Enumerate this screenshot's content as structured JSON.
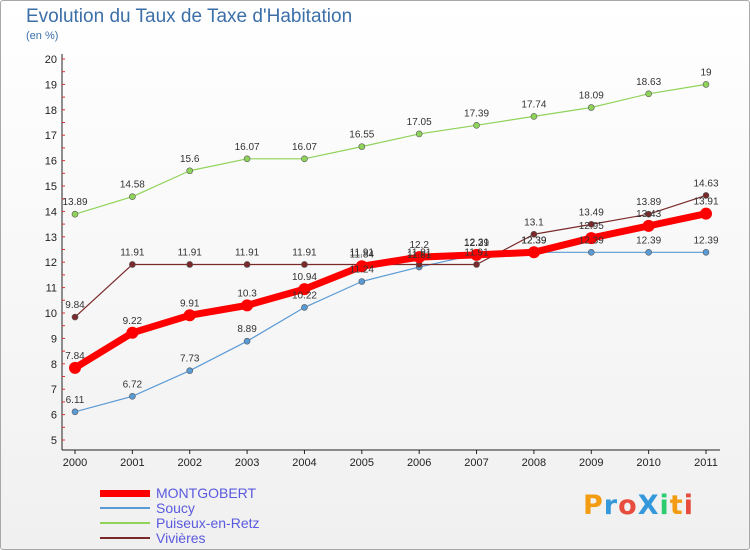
{
  "title": "Evolution du Taux de Taxe d'Habitation",
  "unit": "(en %)",
  "brand": {
    "text": "ProXiti",
    "letters": [
      "P",
      "r",
      "o",
      "X",
      "i",
      "t",
      "i"
    ],
    "colors": [
      "#f39c12",
      "#3498db",
      "#e74c3c",
      "#3498db",
      "#2ecc71",
      "#f39c12",
      "#e74c3c"
    ]
  },
  "chart_data": {
    "type": "line",
    "title": "Evolution du Taux de Taxe d'Habitation",
    "ylabel": "(en %)",
    "xlabel": "",
    "ylim": [
      5,
      20
    ],
    "yticks": [
      5,
      6,
      7,
      8,
      9,
      10,
      11,
      12,
      13,
      14,
      15,
      16,
      17,
      18,
      19,
      20
    ],
    "categories": [
      "2000",
      "2001",
      "2002",
      "2003",
      "2004",
      "2005",
      "2006",
      "2007",
      "2008",
      "2009",
      "2010",
      "2011"
    ],
    "grid": false,
    "legend": "bottom-left",
    "series": [
      {
        "name": "MONTGOBERT",
        "color": "#ff0000",
        "values": [
          7.84,
          9.22,
          9.91,
          10.3,
          10.94,
          11.84,
          12.2,
          12.29,
          12.39,
          12.95,
          13.43,
          13.91
        ],
        "labels": [
          "7.84",
          "9.22",
          "9.91",
          "10.3",
          "10.94",
          "11.84",
          "12.2",
          "12.29",
          "12.39",
          "12.95",
          "13.43",
          "13.91"
        ]
      },
      {
        "name": "Soucy",
        "color": "#5b9bd5",
        "values": [
          6.11,
          6.72,
          7.73,
          8.89,
          10.22,
          11.24,
          11.81,
          12.31,
          12.39,
          12.39,
          12.39,
          12.39
        ],
        "labels": [
          "6.11",
          "6.72",
          "7.73",
          "8.89",
          "10.22",
          "11.24",
          "11.81",
          "12.31",
          "12.39",
          "12.39",
          "12.39",
          "12.39"
        ]
      },
      {
        "name": "Puiseux-en-Retz",
        "color": "#8fd35a",
        "values": [
          13.89,
          14.58,
          15.6,
          16.07,
          16.07,
          16.55,
          17.05,
          17.39,
          17.74,
          18.09,
          18.63,
          19
        ],
        "labels": [
          "13.89",
          "14.58",
          "15.6",
          "16.07",
          "16.07",
          "16.55",
          "17.05",
          "17.39",
          "17.74",
          "18.09",
          "18.63",
          "19"
        ]
      },
      {
        "name": "Vivières",
        "color": "#7a2a2a",
        "values": [
          9.84,
          11.91,
          11.91,
          11.91,
          11.91,
          11.91,
          11.91,
          11.91,
          13.1,
          13.49,
          13.89,
          14.63
        ],
        "labels": [
          "9.84",
          "11.91",
          "11.91",
          "11.91",
          "11.91",
          "11.91",
          "11.91",
          "11.91",
          "13.1",
          "13.49",
          "13.89",
          "14.63"
        ]
      }
    ]
  }
}
